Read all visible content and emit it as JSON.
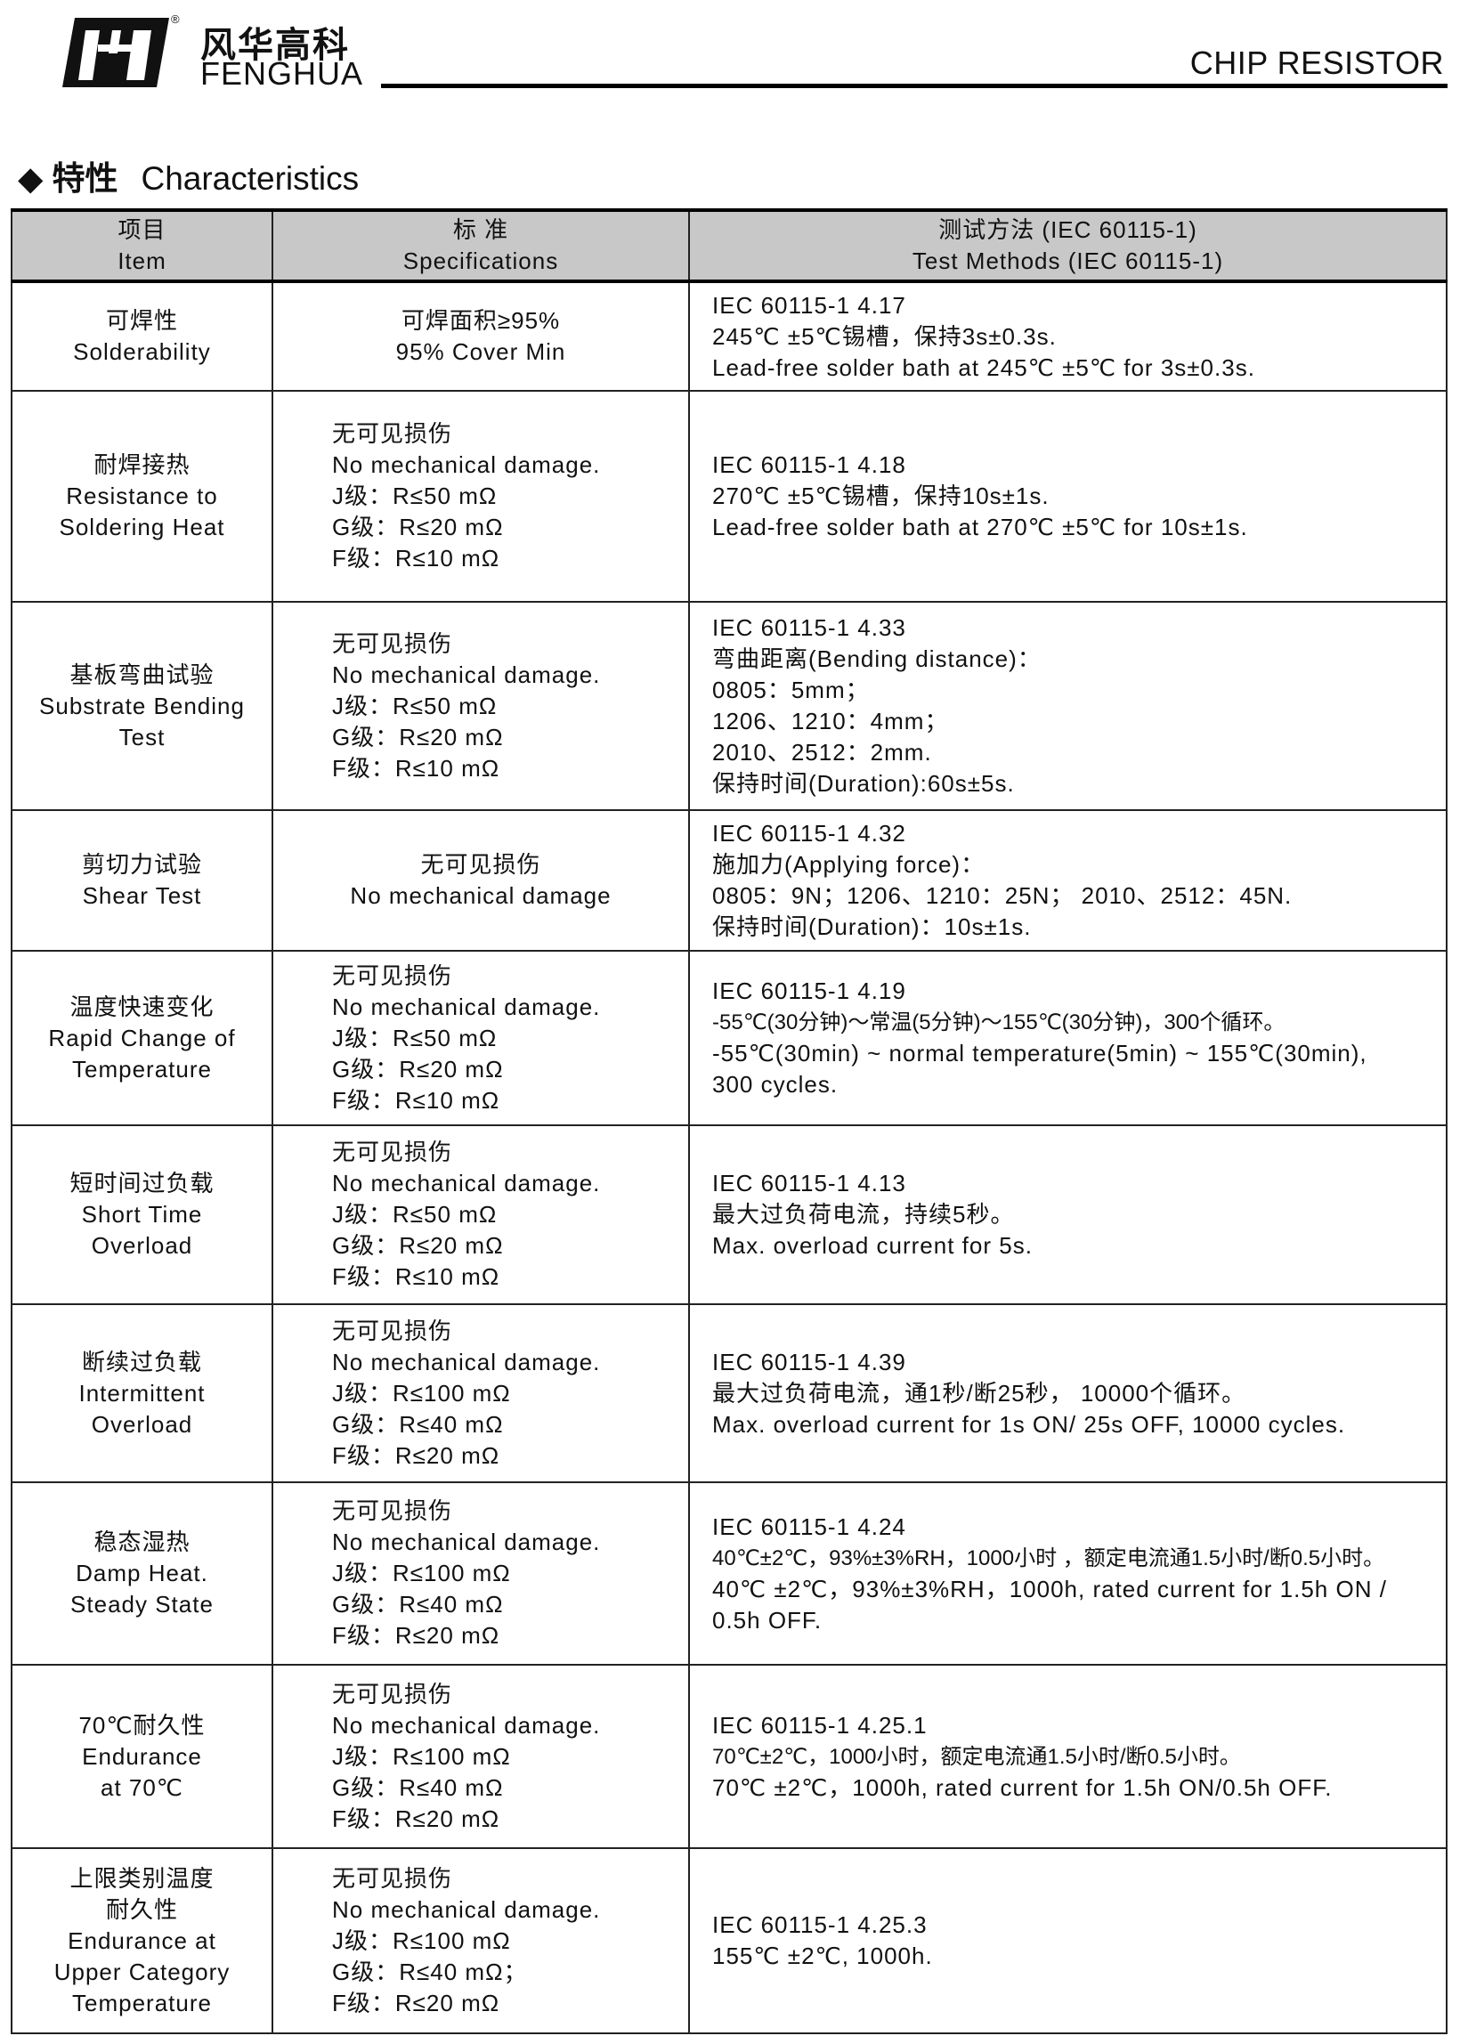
{
  "header": {
    "logo_cn": "风华高科",
    "logo_en": "FENGHUA",
    "logo_reg": "®",
    "doc_title": "CHIP RESISTOR"
  },
  "section": {
    "bullet": "◆",
    "title_cn": "特性",
    "title_en": "Characteristics"
  },
  "table": {
    "columns": [
      [
        "项目",
        "Item"
      ],
      [
        "标 准",
        "Specifications"
      ],
      [
        "测试方法 (IEC 60115-1)",
        "Test Methods (IEC 60115-1)"
      ]
    ],
    "rows": [
      {
        "item": [
          "可焊性",
          "Solderability"
        ],
        "spec": [
          "可焊面积≥95%",
          "95% Cover Min"
        ],
        "method": [
          "IEC 60115-1 4.17",
          "245℃ ±5℃锡槽，保持3s±0.3s.",
          "Lead-free solder bath at 245℃ ±5℃ for 3s±0.3s."
        ]
      },
      {
        "item": [
          "耐焊接热",
          "Resistance to",
          "Soldering Heat"
        ],
        "spec": [
          "无可见损伤",
          "No mechanical damage.",
          "J级：R≤50 mΩ",
          "G级：R≤20 mΩ",
          "F级：R≤10 mΩ"
        ],
        "method": [
          "IEC 60115-1 4.18",
          "270℃ ±5℃锡槽，保持10s±1s.",
          "Lead-free solder bath at 270℃ ±5℃ for 10s±1s."
        ]
      },
      {
        "item": [
          "基板弯曲试验",
          "Substrate Bending",
          "Test"
        ],
        "spec": [
          "无可见损伤",
          "No mechanical damage.",
          "J级：R≤50 mΩ",
          "G级：R≤20 mΩ",
          "F级：R≤10 mΩ"
        ],
        "method": [
          "IEC 60115-1 4.33",
          "弯曲距离(Bending distance)：",
          "0805：5mm；",
          "1206、1210：4mm；",
          "2010、2512：2mm.",
          "保持时间(Duration):60s±5s."
        ]
      },
      {
        "item": [
          "剪切力试验",
          "Shear Test"
        ],
        "spec": [
          "无可见损伤",
          "No mechanical damage"
        ],
        "method": [
          "IEC 60115-1 4.32",
          "施加力(Applying force)：",
          "0805：9N；1206、1210：25N； 2010、2512：45N.",
          "保持时间(Duration)：10s±1s."
        ]
      },
      {
        "item": [
          "温度快速变化",
          "Rapid Change of",
          "Temperature"
        ],
        "spec": [
          "无可见损伤",
          "No mechanical damage.",
          "J级：R≤50 mΩ",
          "G级：R≤20 mΩ",
          "F级：R≤10 mΩ"
        ],
        "method": [
          "IEC 60115-1 4.19",
          "-55℃(30分钟)～常温(5分钟)～155℃(30分钟)，300个循环。",
          "-55℃(30min) ~ normal temperature(5min) ~ 155℃(30min),",
          "300 cycles."
        ]
      },
      {
        "item": [
          "短时间过负载",
          "Short Time",
          "Overload"
        ],
        "spec": [
          "无可见损伤",
          "No mechanical damage.",
          "J级：R≤50 mΩ",
          "G级：R≤20 mΩ",
          "F级：R≤10 mΩ"
        ],
        "method": [
          "IEC 60115-1 4.13",
          "最大过负荷电流，持续5秒。",
          "Max. overload current for 5s."
        ]
      },
      {
        "item": [
          "断续过负载",
          "Intermittent",
          "Overload"
        ],
        "spec": [
          "无可见损伤",
          "No mechanical damage.",
          "J级：R≤100 mΩ",
          "G级：R≤40 mΩ",
          "F级：R≤20 mΩ"
        ],
        "method": [
          "IEC 60115-1 4.39",
          "最大过负荷电流，通1秒/断25秒， 10000个循环。",
          "Max. overload current for 1s ON/ 25s OFF, 10000 cycles."
        ]
      },
      {
        "item": [
          "稳态湿热",
          "Damp Heat.",
          "Steady State"
        ],
        "spec": [
          "无可见损伤",
          "No mechanical damage.",
          "J级：R≤100 mΩ",
          "G级：R≤40 mΩ",
          "F级：R≤20 mΩ"
        ],
        "method": [
          "IEC 60115-1 4.24",
          "40℃±2℃，93%±3%RH，1000小时 ，额定电流通1.5小时/断0.5小时。",
          "40℃ ±2℃，93%±3%RH，1000h, rated current for 1.5h ON /",
          "0.5h OFF."
        ]
      },
      {
        "item": [
          "70℃耐久性",
          "Endurance",
          "at 70℃"
        ],
        "spec": [
          "无可见损伤",
          "No mechanical damage.",
          "J级：R≤100 mΩ",
          "G级：R≤40 mΩ",
          "F级：R≤20 mΩ"
        ],
        "method": [
          "IEC 60115-1 4.25.1",
          "70℃±2℃，1000小时，额定电流通1.5小时/断0.5小时。",
          "70℃ ±2℃，1000h, rated current for 1.5h ON/0.5h OFF."
        ]
      },
      {
        "item": [
          "上限类别温度",
          "耐久性",
          "Endurance at",
          "Upper Category",
          "Temperature"
        ],
        "spec": [
          "无可见损伤",
          "No mechanical damage.",
          "J级：R≤100 mΩ",
          "G级：R≤40 mΩ；",
          "F级：R≤20 mΩ"
        ],
        "method": [
          "IEC 60115-1 4.25.3",
          "155℃ ±2℃, 1000h."
        ]
      }
    ]
  }
}
